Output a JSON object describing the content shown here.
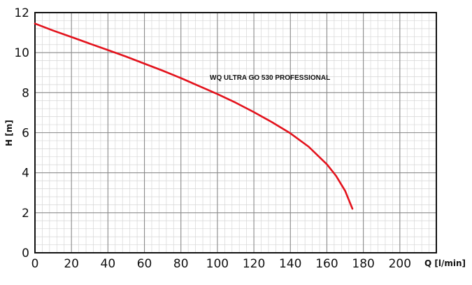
{
  "chart_data": {
    "type": "line",
    "annotation": "WQ ULTRA GO 530 PROFESSIONAL",
    "xlabel": "Q [l/min]",
    "ylabel": "H [m]",
    "xlim": [
      0,
      220
    ],
    "ylim": [
      0,
      12
    ],
    "x_ticks": [
      0,
      20,
      40,
      60,
      80,
      100,
      120,
      140,
      160,
      180,
      200
    ],
    "y_ticks": [
      0,
      2,
      4,
      6,
      8,
      10,
      12
    ],
    "grid": true,
    "series": [
      {
        "color": "#e3121c",
        "points": [
          [
            0,
            11.45
          ],
          [
            10,
            11.1
          ],
          [
            20,
            10.78
          ],
          [
            30,
            10.45
          ],
          [
            40,
            10.13
          ],
          [
            50,
            9.8
          ],
          [
            60,
            9.45
          ],
          [
            70,
            9.1
          ],
          [
            80,
            8.73
          ],
          [
            90,
            8.33
          ],
          [
            100,
            7.93
          ],
          [
            110,
            7.5
          ],
          [
            120,
            7.03
          ],
          [
            130,
            6.52
          ],
          [
            140,
            5.97
          ],
          [
            150,
            5.3
          ],
          [
            160,
            4.42
          ],
          [
            165,
            3.85
          ],
          [
            170,
            3.1
          ],
          [
            174,
            2.2
          ]
        ]
      }
    ]
  }
}
